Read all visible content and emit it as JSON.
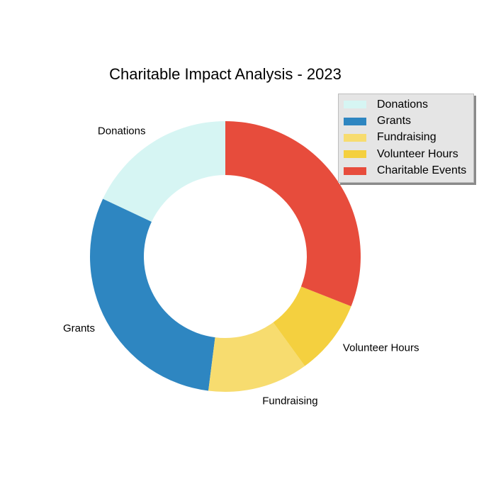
{
  "chart_data": {
    "type": "pie",
    "variant": "donut",
    "title": "Charitable Impact Analysis - 2023",
    "slices": [
      {
        "label": "Donations",
        "value": 18,
        "color": "#d6f5f3"
      },
      {
        "label": "Grants",
        "value": 30,
        "color": "#2e86c1"
      },
      {
        "label": "Fundraising",
        "value": 12,
        "color": "#f7dc6f"
      },
      {
        "label": "Volunteer Hours",
        "value": 9,
        "color": "#f4d03f"
      },
      {
        "label": "Charitable Events",
        "value": 31,
        "color": "#e74c3c"
      }
    ],
    "legend": {
      "placement": "top-right"
    }
  }
}
